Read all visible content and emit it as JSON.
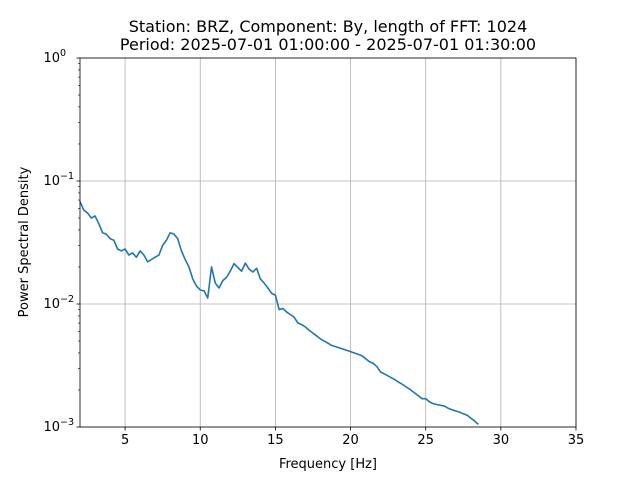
{
  "chart_data": {
    "type": "line",
    "title_line1": "Station: BRZ, Component: By, length of FFT: 1024",
    "title_line2": "Period: 2025-07-01 01:00:00 - 2025-07-01 01:30:00",
    "xlabel": "Frequency [Hz]",
    "ylabel": "Power Spectral Density",
    "xlim": [
      2,
      35
    ],
    "ylim": [
      0.001,
      1
    ],
    "yscale": "log",
    "grid": true,
    "line_color": "#1f77b4",
    "x_ticks": [
      {
        "value": 5,
        "label": "5"
      },
      {
        "value": 10,
        "label": "10"
      },
      {
        "value": 15,
        "label": "15"
      },
      {
        "value": 20,
        "label": "20"
      },
      {
        "value": 25,
        "label": "25"
      },
      {
        "value": 30,
        "label": "30"
      },
      {
        "value": 35,
        "label": "35"
      }
    ],
    "y_ticks": [
      {
        "value": 1,
        "base": "10",
        "exp": "0"
      },
      {
        "value": 0.1,
        "base": "10",
        "exp": "−1"
      },
      {
        "value": 0.01,
        "base": "10",
        "exp": "−2"
      },
      {
        "value": 0.001,
        "base": "10",
        "exp": "−3"
      }
    ],
    "series": [
      {
        "x": [
          2.0,
          2.25,
          2.5,
          2.75,
          3.0,
          3.25,
          3.5,
          3.75,
          4.0,
          4.25,
          4.5,
          4.75,
          5.0,
          5.25,
          5.5,
          5.75,
          6.0,
          6.25,
          6.5,
          6.75,
          7.0,
          7.25,
          7.5,
          7.75,
          8.0,
          8.25,
          8.5,
          8.75,
          9.0,
          9.25,
          9.5,
          9.75,
          10.0,
          10.25,
          10.5,
          10.75,
          11.0,
          11.25,
          11.5,
          11.75,
          12.0,
          12.25,
          12.5,
          12.75,
          13.0,
          13.25,
          13.5,
          13.75,
          14.0,
          14.25,
          14.5,
          14.75,
          15.0,
          15.25,
          15.5,
          15.75,
          16.0,
          16.25,
          16.5,
          16.75,
          17.0,
          17.25,
          17.5,
          17.75,
          18.0,
          18.25,
          18.5,
          18.75,
          19.0,
          19.25,
          19.5,
          19.75,
          20.0,
          20.25,
          20.5,
          20.75,
          21.0,
          21.25,
          21.5,
          21.75,
          22.0,
          22.25,
          22.5,
          22.75,
          23.0,
          23.25,
          23.5,
          23.75,
          24.0,
          24.25,
          24.5,
          24.75,
          25.0,
          25.25,
          25.5,
          25.75,
          26.0,
          26.25,
          26.5,
          26.75,
          27.0,
          27.25,
          27.5,
          27.75,
          28.0,
          28.25,
          28.5
        ],
        "y": [
          0.068,
          0.058,
          0.055,
          0.05,
          0.052,
          0.045,
          0.038,
          0.037,
          0.034,
          0.033,
          0.028,
          0.027,
          0.028,
          0.025,
          0.026,
          0.024,
          0.027,
          0.025,
          0.022,
          0.023,
          0.024,
          0.025,
          0.03,
          0.033,
          0.038,
          0.037,
          0.034,
          0.027,
          0.023,
          0.02,
          0.016,
          0.014,
          0.013,
          0.0128,
          0.0112,
          0.02,
          0.0148,
          0.0135,
          0.0155,
          0.0165,
          0.0185,
          0.0213,
          0.0198,
          0.0185,
          0.0215,
          0.0192,
          0.0182,
          0.0195,
          0.016,
          0.0148,
          0.0135,
          0.0122,
          0.0118,
          0.009,
          0.0092,
          0.0086,
          0.0082,
          0.0078,
          0.007,
          0.0068,
          0.0065,
          0.0061,
          0.0058,
          0.0055,
          0.0052,
          0.005,
          0.0048,
          0.0046,
          0.0045,
          0.0044,
          0.0043,
          0.0042,
          0.0041,
          0.004,
          0.0039,
          0.0038,
          0.0036,
          0.0034,
          0.0033,
          0.0031,
          0.0028,
          0.0027,
          0.0026,
          0.0025,
          0.0024,
          0.0023,
          0.0022,
          0.0021,
          0.002,
          0.0019,
          0.0018,
          0.0017,
          0.0017,
          0.0016,
          0.00155,
          0.00152,
          0.0015,
          0.00148,
          0.00142,
          0.00138,
          0.00135,
          0.00132,
          0.00128,
          0.00125,
          0.00118,
          0.00112,
          0.00105
        ]
      }
    ]
  }
}
